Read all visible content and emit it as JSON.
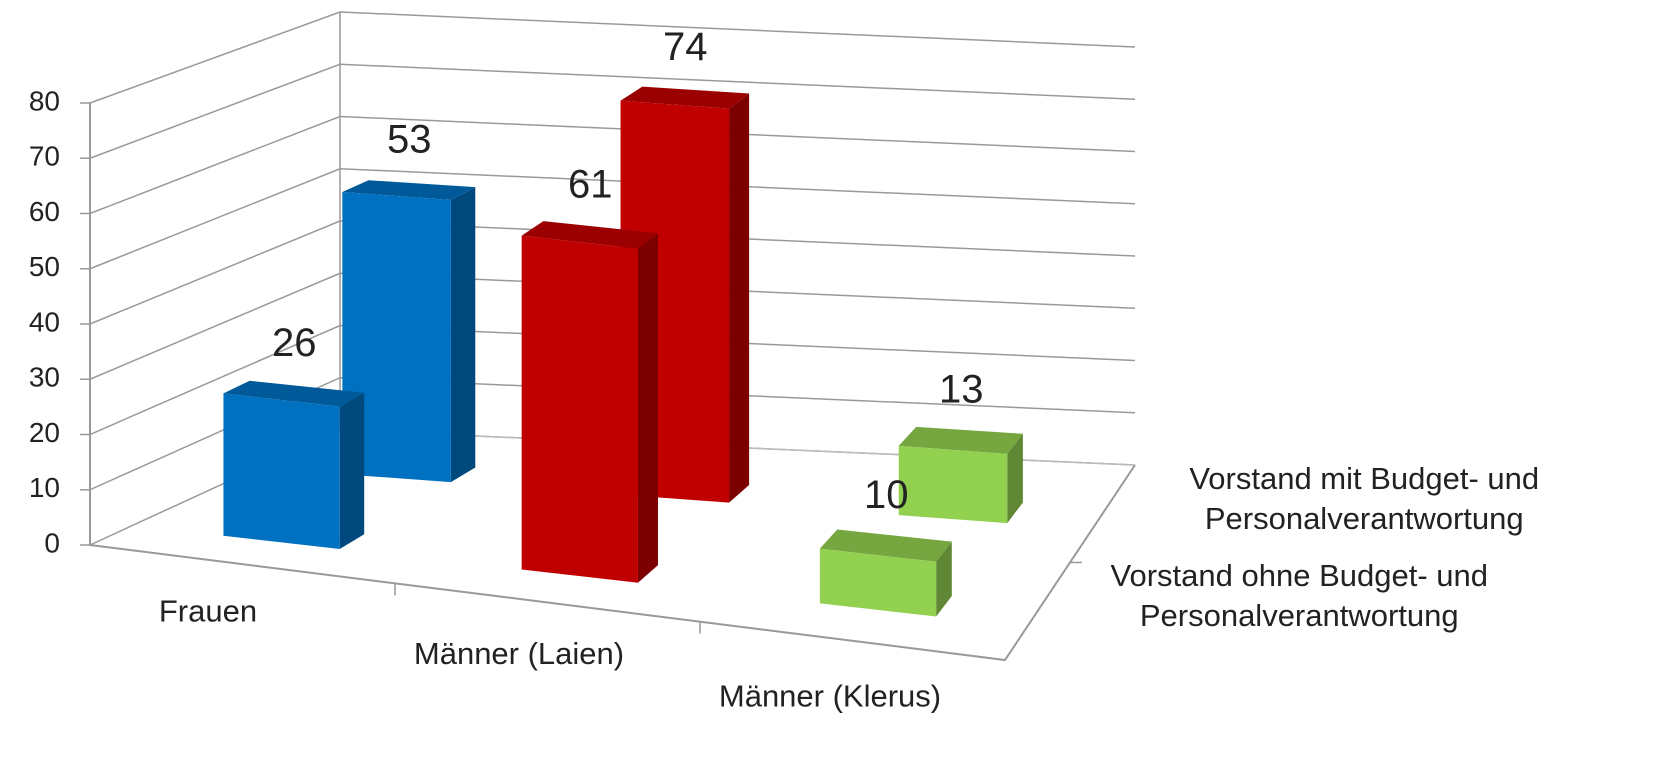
{
  "chart_data": {
    "type": "bar3d",
    "categories": [
      "Frauen",
      "Männer (Laien)",
      "Männer (Klerus)"
    ],
    "colors": [
      "#0070c0",
      "#c00000",
      "#92d050"
    ],
    "series": [
      {
        "name": "Vorstand ohne Budget- und Personalverantwortung",
        "values": [
          26,
          61,
          10
        ]
      },
      {
        "name": "Vorstand mit Budget- und Personalverantwortung",
        "values": [
          53,
          74,
          13
        ]
      }
    ],
    "ylim": [
      0,
      80
    ],
    "yticks": [
      0,
      10,
      20,
      30,
      40,
      50,
      60,
      70,
      80
    ],
    "grid": true
  }
}
